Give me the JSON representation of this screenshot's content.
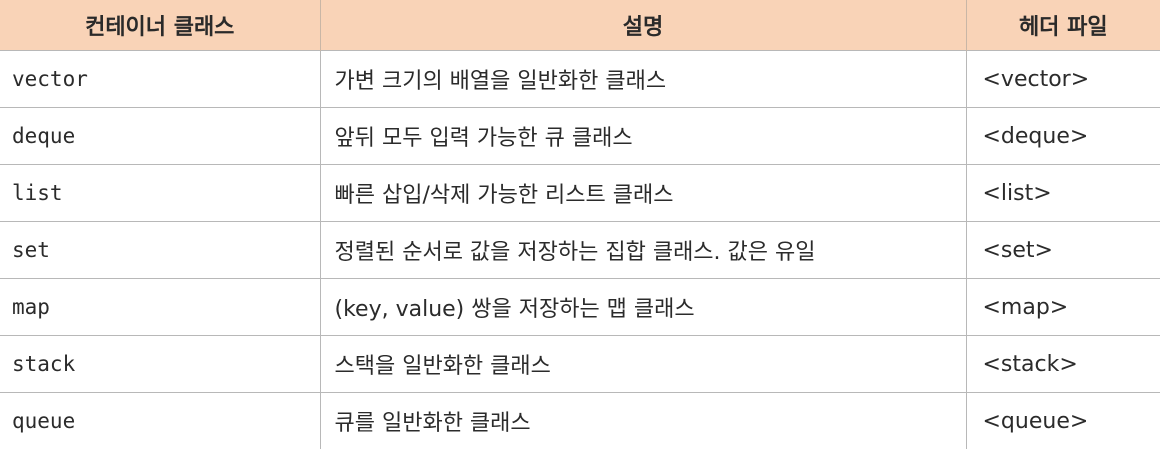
{
  "table": {
    "columns": [
      "컨테이너 클래스",
      "설명",
      "헤더 파일"
    ],
    "rows": [
      {
        "class": "vector",
        "desc": "가변 크기의 배열을 일반화한 클래스",
        "header": "<vector>"
      },
      {
        "class": "deque",
        "desc": "앞뒤 모두 입력 가능한 큐 클래스",
        "header": "<deque>"
      },
      {
        "class": "list",
        "desc": "빠른 삽입/삭제 가능한 리스트 클래스",
        "header": "<list>"
      },
      {
        "class": "set",
        "desc": "정렬된 순서로 값을 저장하는 집합 클래스. 값은 유일",
        "header": "<set>"
      },
      {
        "class": "map",
        "desc": "(key, value) 쌍을 저장하는 맵 클래스",
        "header": "<map>"
      },
      {
        "class": "stack",
        "desc": "스택을 일반화한 클래스",
        "header": "<stack>"
      },
      {
        "class": "queue",
        "desc": "큐를 일반화한 클래스",
        "header": "<queue>"
      }
    ]
  },
  "colors": {
    "header_bg": "#f9d3b7",
    "border": "#b8b8b8"
  }
}
